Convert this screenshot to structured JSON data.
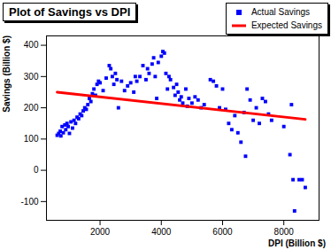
{
  "chart_data": {
    "type": "scatter",
    "title": "Plot of Savings vs DPI",
    "x_label": "DPI (Billion $)",
    "y_label": "Savings (Billion $)",
    "xlim": [
      250,
      9150
    ],
    "ylim": [
      -160,
      430
    ],
    "xticks": [
      2000,
      4000,
      6000,
      8000
    ],
    "yticks": [
      -100,
      0,
      100,
      200,
      300,
      400
    ],
    "grid": false,
    "legend": "top-right",
    "series": [
      {
        "name": "Actual Savings",
        "type": "scatter",
        "marker": "square",
        "color": "#0000ff",
        "x": [
          600,
          650,
          700,
          720,
          760,
          800,
          850,
          880,
          920,
          960,
          1000,
          1050,
          1100,
          1150,
          1200,
          1250,
          1300,
          1350,
          1400,
          1450,
          1500,
          1550,
          1600,
          1650,
          1700,
          1750,
          1800,
          1850,
          1900,
          1950,
          2000,
          2100,
          2200,
          2300,
          2350,
          2400,
          2450,
          2500,
          2550,
          2600,
          2700,
          2800,
          2900,
          3000,
          3100,
          3150,
          3200,
          3300,
          3400,
          3500,
          3550,
          3600,
          3700,
          3750,
          3800,
          3850,
          3900,
          4000,
          4050,
          4100,
          4150,
          4200,
          4250,
          4300,
          4400,
          4450,
          4500,
          4550,
          4600,
          4650,
          4700,
          4800,
          4850,
          4900,
          5000,
          5100,
          5200,
          5300,
          5400,
          5600,
          5700,
          5800,
          5900,
          6000,
          6100,
          6200,
          6300,
          6400,
          6500,
          6600,
          6700,
          6750,
          6800,
          6900,
          7000,
          7100,
          7200,
          7300,
          7400,
          7500,
          7600,
          8000,
          8200,
          8250,
          8300,
          8350,
          8500,
          8600,
          8700
        ],
        "values": [
          112,
          118,
          125,
          110,
          140,
          120,
          145,
          130,
          150,
          140,
          118,
          155,
          135,
          160,
          150,
          170,
          165,
          180,
          175,
          190,
          200,
          195,
          210,
          230,
          220,
          245,
          260,
          240,
          275,
          285,
          280,
          255,
          295,
          335,
          325,
          300,
          275,
          310,
          290,
          200,
          285,
          255,
          270,
          280,
          250,
          300,
          285,
          300,
          335,
          290,
          325,
          310,
          340,
          360,
          300,
          230,
          345,
          365,
          380,
          375,
          310,
          260,
          300,
          290,
          265,
          240,
          275,
          250,
          225,
          235,
          215,
          260,
          205,
          230,
          215,
          235,
          225,
          200,
          210,
          290,
          285,
          270,
          200,
          260,
          195,
          150,
          130,
          175,
          120,
          90,
          185,
          45,
          260,
          225,
          160,
          200,
          150,
          230,
          220,
          180,
          160,
          140,
          50,
          210,
          -30,
          -130,
          -30,
          -30,
          -55
        ]
      },
      {
        "name": "Expected Savings",
        "type": "line",
        "line_style": "solid",
        "color": "#ff0000",
        "x": [
          600,
          8700
        ],
        "values": [
          250,
          163
        ]
      }
    ]
  }
}
